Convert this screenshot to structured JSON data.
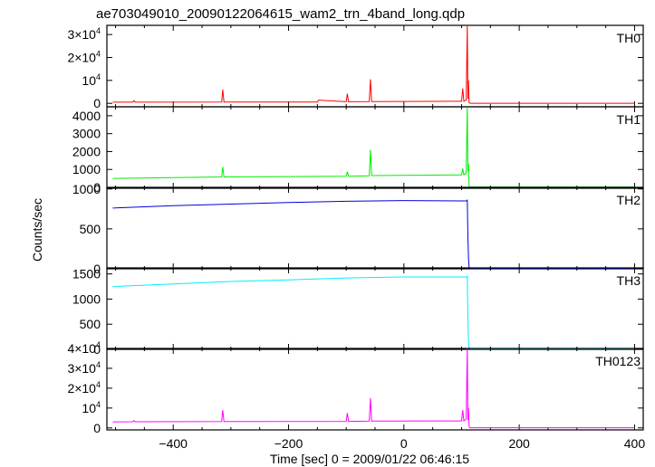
{
  "chart_data": {
    "type": "line",
    "title": "ae703049010_20090122064615_wam2_trn_4band_long.qdp",
    "xlabel": "Time [sec] 0 = 2009/01/22 06:46:15",
    "ylabel": "Counts/sec",
    "xlim": [
      -515,
      415
    ],
    "x_ticks": [
      {
        "value": -400,
        "label": "−400"
      },
      {
        "value": -200,
        "label": "−200"
      },
      {
        "value": 0,
        "label": "0"
      },
      {
        "value": 200,
        "label": "200"
      },
      {
        "value": 400,
        "label": "400"
      }
    ],
    "panels": [
      {
        "name": "TH0",
        "color": "#ff0000",
        "ylim": [
          -1500,
          34000
        ],
        "yticks": [
          {
            "value": 0,
            "label": "0"
          },
          {
            "value": 10000,
            "label": "10",
            "sup": "4"
          },
          {
            "value": 20000,
            "label": "2×10",
            "sup": "4"
          },
          {
            "value": 30000,
            "label": "3×10",
            "sup": "4"
          }
        ],
        "x": [
          -505,
          -470,
          -468,
          -466,
          -316,
          -314,
          -312,
          -150,
          -148,
          -100,
          -98,
          -96,
          -60,
          -58,
          -56,
          100,
          102,
          104,
          108,
          110,
          111,
          112,
          113,
          114,
          115,
          118,
          400
        ],
        "y": [
          500,
          500,
          1200,
          500,
          600,
          6000,
          600,
          600,
          1400,
          700,
          4200,
          700,
          800,
          10500,
          800,
          900,
          6500,
          900,
          1500,
          34000,
          2000,
          10000,
          300,
          100,
          50,
          50,
          50
        ]
      },
      {
        "name": "TH1",
        "color": "#00ee00",
        "ylim": [
          -50,
          4500
        ],
        "yticks": [
          {
            "value": 0,
            "label": "0"
          },
          {
            "value": 1000,
            "label": "1000"
          },
          {
            "value": 2000,
            "label": "2000"
          },
          {
            "value": 3000,
            "label": "3000"
          },
          {
            "value": 4000,
            "label": "4000"
          }
        ],
        "x": [
          -505,
          -316,
          -314,
          -312,
          -100,
          -98,
          -96,
          -60,
          -58,
          -56,
          100,
          102,
          104,
          108,
          110,
          111,
          112,
          113,
          114,
          118,
          400
        ],
        "y": [
          500,
          580,
          1150,
          580,
          620,
          880,
          620,
          650,
          2100,
          660,
          700,
          1050,
          700,
          800,
          4500,
          900,
          1300,
          80,
          20,
          20,
          20
        ]
      },
      {
        "name": "TH2",
        "color": "#0000dd",
        "ylim": [
          0,
          1020
        ],
        "yticks": [
          {
            "value": 0,
            "label": "0"
          },
          {
            "value": 500,
            "label": "500"
          },
          {
            "value": 1000,
            "label": "1000"
          }
        ],
        "x": [
          -505,
          -400,
          -300,
          -200,
          -100,
          0,
          100,
          108,
          110,
          111,
          112,
          113,
          114,
          118,
          400
        ],
        "y": [
          760,
          790,
          810,
          830,
          845,
          855,
          850,
          850,
          860,
          400,
          150,
          20,
          5,
          5,
          5
        ]
      },
      {
        "name": "TH3",
        "color": "#00eeff",
        "ylim": [
          0,
          1620
        ],
        "yticks": [
          {
            "value": 0,
            "label": "0"
          },
          {
            "value": 500,
            "label": "500"
          },
          {
            "value": 1000,
            "label": "1000"
          },
          {
            "value": 1500,
            "label": "1500"
          }
        ],
        "x": [
          -505,
          -400,
          -300,
          -200,
          -100,
          0,
          100,
          108,
          110,
          111,
          112,
          113,
          114,
          118,
          400
        ],
        "y": [
          1250,
          1300,
          1350,
          1380,
          1420,
          1440,
          1440,
          1440,
          1450,
          600,
          200,
          20,
          10,
          10,
          10
        ]
      },
      {
        "name": "TH0123",
        "color": "#ff00ff",
        "ylim": [
          -1000,
          40000
        ],
        "yticks": [
          {
            "value": 0,
            "label": "0"
          },
          {
            "value": 10000,
            "label": "10",
            "sup": "4"
          },
          {
            "value": 20000,
            "label": "2×10",
            "sup": "4"
          },
          {
            "value": 30000,
            "label": "3×10",
            "sup": "4"
          },
          {
            "value": 40000,
            "label": "4×10",
            "sup": "4"
          }
        ],
        "x": [
          -505,
          -470,
          -468,
          -466,
          -316,
          -314,
          -312,
          -100,
          -98,
          -96,
          -60,
          -58,
          -56,
          100,
          102,
          104,
          108,
          110,
          111,
          112,
          113,
          114,
          115,
          118,
          400
        ],
        "y": [
          3000,
          3100,
          3700,
          3100,
          3200,
          9000,
          3200,
          3300,
          7500,
          3300,
          3400,
          15000,
          3400,
          3500,
          9000,
          3500,
          4500,
          40000,
          4000,
          10000,
          600,
          200,
          100,
          100,
          100
        ]
      }
    ],
    "grid": false,
    "legend": "none"
  }
}
